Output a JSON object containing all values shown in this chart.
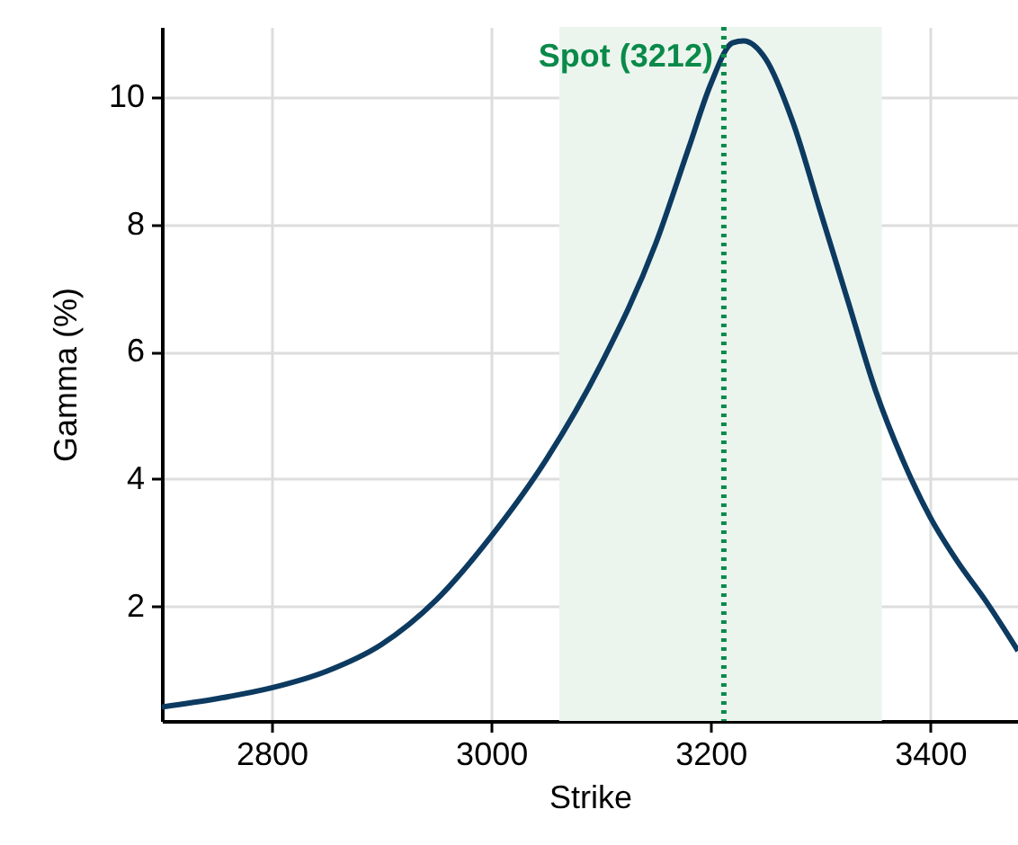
{
  "chart_data": {
    "type": "line",
    "xlabel": "Strike",
    "ylabel": "Gamma (%)",
    "x": [
      2700,
      2750,
      2800,
      2850,
      2900,
      2950,
      3000,
      3050,
      3100,
      3150,
      3180,
      3200,
      3220,
      3230,
      3250,
      3275,
      3300,
      3325,
      3350,
      3375,
      3400,
      3425,
      3450,
      3480
    ],
    "series": [
      {
        "color": "#0d3a60",
        "values": [
          0.42,
          0.55,
          0.72,
          0.98,
          1.4,
          2.1,
          3.1,
          4.3,
          5.8,
          7.7,
          9.2,
          10.2,
          10.85,
          10.88,
          10.6,
          9.6,
          8.2,
          6.8,
          5.4,
          4.3,
          3.4,
          2.7,
          2.1,
          1.3
        ]
      }
    ],
    "xlim": [
      2700,
      3480
    ],
    "xticks": [
      2800,
      3000,
      3200,
      3400
    ],
    "ylim": [
      0.2,
      11.1
    ],
    "yticks": [
      2,
      4,
      6,
      8,
      10
    ],
    "grid": true,
    "line_style": "solid",
    "marker": "none",
    "bands": [
      {
        "axis": "x",
        "from": 3062,
        "to": 3356,
        "color": "#ebf5ee"
      }
    ],
    "ref_lines": [
      {
        "axis": "x",
        "value": 3212,
        "label": "Spot (3212)",
        "color": "#0a8a4a",
        "line_style": "dotted"
      }
    ]
  }
}
